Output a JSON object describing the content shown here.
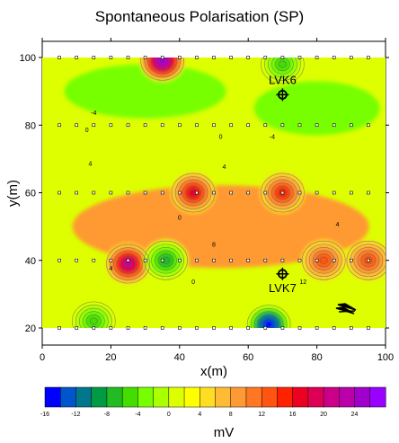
{
  "chart_data": {
    "type": "heatmap",
    "title": "Spontaneous Polarisation (SP)",
    "xlabel": "x(m)",
    "ylabel": "y(m)",
    "xlim": [
      0,
      100
    ],
    "ylim": [
      20,
      100
    ],
    "x_ticks": [
      0,
      20,
      40,
      60,
      80,
      100
    ],
    "y_ticks": [
      20,
      40,
      60,
      80,
      100
    ],
    "colorbar": {
      "label": "mV",
      "range": [
        -16,
        28
      ],
      "step": 2,
      "tick_labels": [
        -16,
        -12,
        -8,
        -4,
        0,
        4,
        8,
        12,
        16,
        20,
        24
      ],
      "colors": [
        "#0000ff",
        "#0055cc",
        "#00778a",
        "#009944",
        "#22bb22",
        "#44dd00",
        "#77ff00",
        "#aaff00",
        "#ddff00",
        "#ffff00",
        "#ffdd22",
        "#ffbb33",
        "#ff9933",
        "#ff7722",
        "#ff5511",
        "#ff2200",
        "#ee0022",
        "#dd0055",
        "#cc0088",
        "#bb00aa",
        "#a000cc",
        "#9900ff"
      ]
    },
    "contour_labels": [
      "-4",
      "0",
      "4",
      "0",
      "-4",
      "4",
      "8",
      "4",
      "0",
      "12",
      "4",
      "0"
    ],
    "wells": [
      {
        "name": "LVK6",
        "x": 70,
        "y": 89
      },
      {
        "name": "LVK7",
        "x": 70,
        "y": 36
      }
    ],
    "survey_lines_y": [
      20,
      40,
      60,
      80,
      100
    ],
    "survey_stations_x": [
      5,
      10,
      15,
      20,
      25,
      30,
      35,
      40,
      45,
      50,
      55,
      60,
      65,
      70,
      75,
      80,
      85,
      90,
      95
    ],
    "anomalies": [
      {
        "x": 44,
        "y": 60,
        "value": 16
      },
      {
        "x": 25,
        "y": 39,
        "value": 20
      },
      {
        "x": 70,
        "y": 60,
        "value": 14
      },
      {
        "x": 82,
        "y": 40,
        "value": 12
      },
      {
        "x": 95,
        "y": 40,
        "value": 12
      },
      {
        "x": 35,
        "y": 99,
        "value": 24
      },
      {
        "x": 66,
        "y": 21,
        "value": -16
      },
      {
        "x": 36,
        "y": 40,
        "value": -8
      },
      {
        "x": 70,
        "y": 98,
        "value": -6
      },
      {
        "x": 15,
        "y": 22,
        "value": -6
      }
    ]
  }
}
